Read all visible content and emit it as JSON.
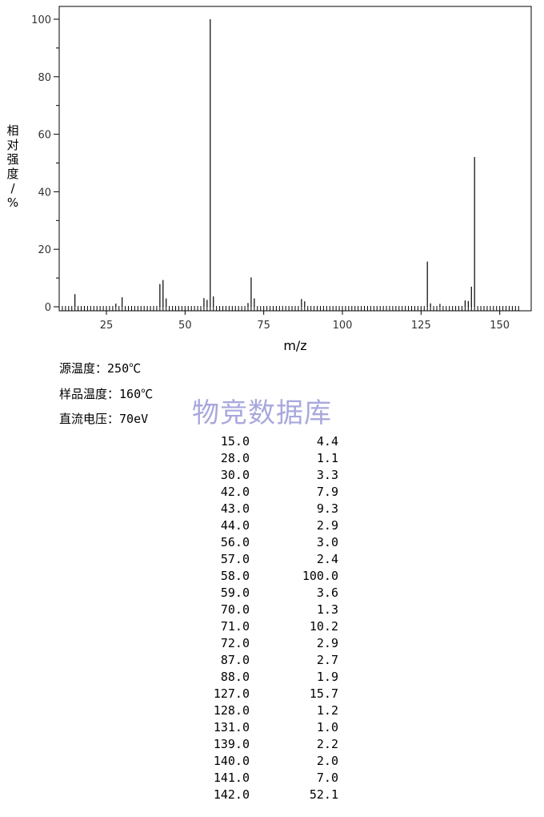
{
  "chart_data": {
    "type": "bar",
    "xlabel": "m/z",
    "ylabel": "相对强度/%",
    "xlim": [
      10,
      160
    ],
    "ylim": [
      0,
      100
    ],
    "x_ticks": [
      25,
      50,
      75,
      100,
      125,
      150
    ],
    "y_ticks": [
      0,
      20,
      40,
      60,
      80,
      100
    ],
    "peaks_mz": [
      15,
      28,
      30,
      42,
      43,
      44,
      56,
      57,
      58,
      59,
      70,
      71,
      72,
      87,
      88,
      127,
      128,
      131,
      139,
      140,
      141,
      142
    ],
    "peaks_intensity": [
      4.4,
      1.1,
      3.3,
      7.9,
      9.3,
      2.9,
      3.0,
      2.4,
      100.0,
      3.6,
      1.3,
      10.2,
      2.9,
      2.7,
      1.9,
      15.7,
      1.2,
      1.0,
      2.2,
      2.0,
      7.0,
      52.1
    ]
  },
  "conditions": [
    {
      "label": "源温度：",
      "value": "250℃"
    },
    {
      "label": "样品温度：",
      "value": "160℃"
    },
    {
      "label": "直流电压：",
      "value": "70eV"
    }
  ],
  "watermark": "物竞数据库",
  "peak_table": [
    {
      "mz": "15.0",
      "intensity": "4.4"
    },
    {
      "mz": "28.0",
      "intensity": "1.1"
    },
    {
      "mz": "30.0",
      "intensity": "3.3"
    },
    {
      "mz": "42.0",
      "intensity": "7.9"
    },
    {
      "mz": "43.0",
      "intensity": "9.3"
    },
    {
      "mz": "44.0",
      "intensity": "2.9"
    },
    {
      "mz": "56.0",
      "intensity": "3.0"
    },
    {
      "mz": "57.0",
      "intensity": "2.4"
    },
    {
      "mz": "58.0",
      "intensity": "100.0"
    },
    {
      "mz": "59.0",
      "intensity": "3.6"
    },
    {
      "mz": "70.0",
      "intensity": "1.3"
    },
    {
      "mz": "71.0",
      "intensity": "10.2"
    },
    {
      "mz": "72.0",
      "intensity": "2.9"
    },
    {
      "mz": "87.0",
      "intensity": "2.7"
    },
    {
      "mz": "88.0",
      "intensity": "1.9"
    },
    {
      "mz": "127.0",
      "intensity": "15.7"
    },
    {
      "mz": "128.0",
      "intensity": "1.2"
    },
    {
      "mz": "131.0",
      "intensity": "1.0"
    },
    {
      "mz": "139.0",
      "intensity": "2.2"
    },
    {
      "mz": "140.0",
      "intensity": "2.0"
    },
    {
      "mz": "141.0",
      "intensity": "7.0"
    },
    {
      "mz": "142.0",
      "intensity": "52.1"
    }
  ]
}
